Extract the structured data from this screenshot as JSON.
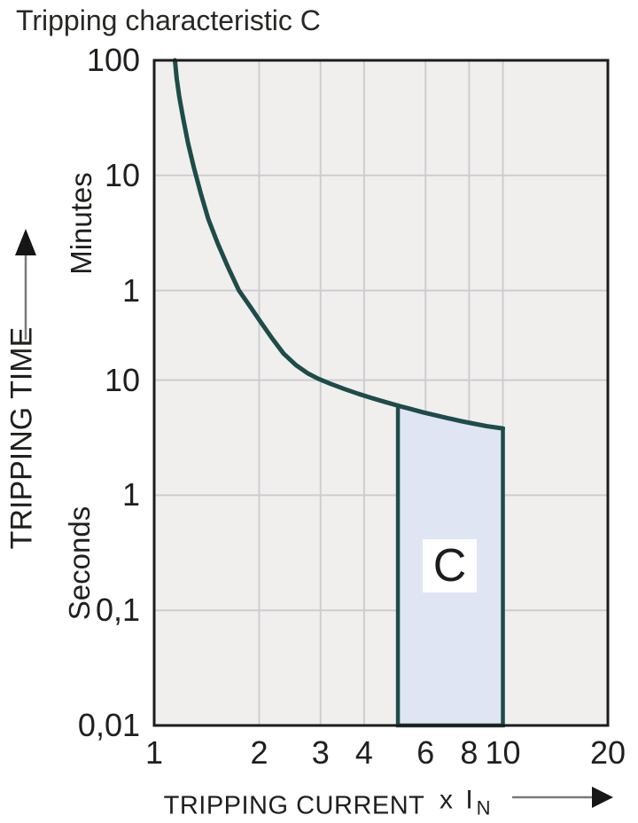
{
  "title": "Tripping characteristic C",
  "colors": {
    "page_background": "#ffffff",
    "plot_background": "#f0efee",
    "gridline": "#cdcdd1",
    "plot_border": "#1c1c1c",
    "curve": "#1d4c49",
    "region_fill": "#dfe5f3",
    "region_border": "#1d4c49",
    "text": "#1f1f1d",
    "arrow_shaft": "#7a7a7a",
    "arrow_head": "#161616"
  },
  "labels": {
    "y_axis": "TRIPPING TIME",
    "y_unit_upper": "Minutes",
    "y_unit_lower": "Seconds",
    "x_axis": "TRIPPING CURRENT",
    "x_unit_prefix": "x I",
    "x_unit_sub": "N"
  },
  "icons": {
    "y_axis_arrow": "arrow-up",
    "x_axis_arrow": "arrow-right"
  },
  "chart_data": {
    "type": "line",
    "title": "Tripping characteristic C",
    "xlabel": "TRIPPING CURRENT (x IN)",
    "ylabel": "TRIPPING TIME",
    "x_axis": {
      "scale": "log",
      "range": [
        1,
        20
      ],
      "ticks": [
        {
          "label": "1",
          "value": 1
        },
        {
          "label": "2",
          "value": 2
        },
        {
          "label": "3",
          "value": 3
        },
        {
          "label": "4",
          "value": 4
        },
        {
          "label": "6",
          "value": 6
        },
        {
          "label": "8",
          "value": 8
        },
        {
          "label": "10",
          "value": 10
        },
        {
          "label": "20",
          "value": 20
        }
      ],
      "gridlines": [
        2,
        3,
        4,
        6,
        8,
        10
      ]
    },
    "y_axis": {
      "scale": "log",
      "range_seconds": [
        0.01,
        6000
      ],
      "ticks": [
        {
          "label": "100",
          "seconds": 6000,
          "unit": "minutes"
        },
        {
          "label": "10",
          "seconds": 600,
          "unit": "minutes"
        },
        {
          "label": "1",
          "seconds": 60,
          "unit": "minutes"
        },
        {
          "label": "10",
          "seconds": 10,
          "unit": "seconds"
        },
        {
          "label": "1",
          "seconds": 1,
          "unit": "seconds"
        },
        {
          "label": "0,1",
          "seconds": 0.1,
          "unit": "seconds"
        },
        {
          "label": "0,01",
          "seconds": 0.01,
          "unit": "seconds"
        }
      ],
      "grid": true
    },
    "series": [
      {
        "name": "C tripping curve",
        "color": "#1d4c49",
        "points": [
          [
            1.147,
            6000
          ],
          [
            1.16,
            4200
          ],
          [
            1.18,
            2900
          ],
          [
            1.21,
            1900
          ],
          [
            1.25,
            1150
          ],
          [
            1.3,
            700
          ],
          [
            1.36,
            420
          ],
          [
            1.43,
            250
          ],
          [
            1.52,
            155
          ],
          [
            1.63,
            95
          ],
          [
            1.75,
            60
          ],
          [
            1.88,
            44
          ],
          [
            2.02,
            32
          ],
          [
            2.18,
            23
          ],
          [
            2.35,
            17
          ],
          [
            2.55,
            13.5
          ],
          [
            2.75,
            11.5
          ],
          [
            2.95,
            10.3
          ],
          [
            3.2,
            9.3
          ],
          [
            3.5,
            8.4
          ],
          [
            3.85,
            7.6
          ],
          [
            4.2,
            7.0
          ],
          [
            4.6,
            6.45
          ],
          [
            5.0,
            6.0
          ],
          [
            5.4,
            5.65
          ],
          [
            5.9,
            5.25
          ],
          [
            6.4,
            4.95
          ],
          [
            7.0,
            4.65
          ],
          [
            7.6,
            4.4
          ],
          [
            8.2,
            4.2
          ],
          [
            9.0,
            3.98
          ],
          [
            10.0,
            3.8
          ]
        ]
      }
    ],
    "region": {
      "label": "C",
      "x_range": [
        5,
        10
      ],
      "bottom_seconds": 0.01,
      "top": "follows curve (6.0 s at 5x In to 3.8 s at 10x In)",
      "fill": "#dfe5f3",
      "border": "#1d4c49"
    },
    "legend": "none"
  }
}
